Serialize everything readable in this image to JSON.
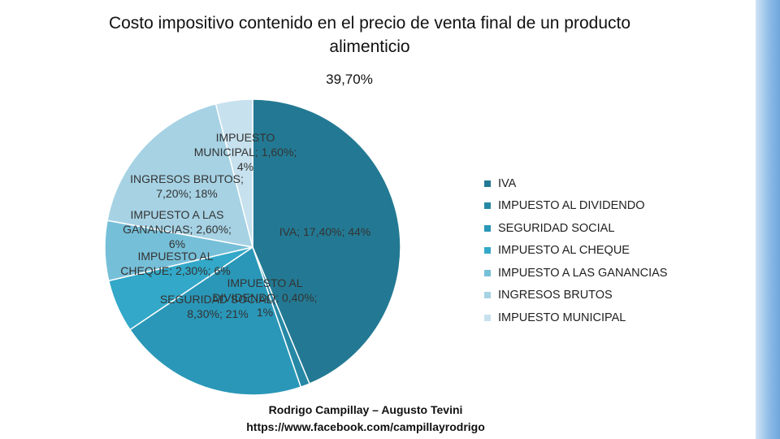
{
  "title": "Costo impositivo contenido en el precio de venta final de un producto alimenticio",
  "subtitle": "39,70%",
  "chart_data": {
    "type": "pie",
    "title": "Costo impositivo contenido en el precio de venta final de un producto alimenticio",
    "subtitle": "39,70%",
    "series": [
      {
        "name": "IVA",
        "value": 17.4,
        "percent": 44,
        "color": "#237993",
        "label_lines": [
          "IVA; 17,40%; 44%"
        ]
      },
      {
        "name": "IMPUESTO AL DIVIDENDO",
        "value": 0.4,
        "percent": 1,
        "color": "#2688a5",
        "label_lines": [
          "IMPUESTO AL",
          "DIVIDENDO; 0,40%;",
          "1%"
        ]
      },
      {
        "name": "SEGURIDAD SOCIAL",
        "value": 8.3,
        "percent": 21,
        "color": "#2a97b8",
        "label_lines": [
          "SEGURIDAD SOCIAL;",
          "8,30%; 21%"
        ]
      },
      {
        "name": "IMPUESTO AL CHEQUE",
        "value": 2.3,
        "percent": 6,
        "color": "#33a8c8",
        "label_lines": [
          "IMPUESTO AL",
          "CHEQUE; 2,30%; 6%"
        ]
      },
      {
        "name": "IMPUESTO A LAS GANANCIAS",
        "value": 2.6,
        "percent": 6,
        "color": "#76bfd8",
        "label_lines": [
          "IMPUESTO A LAS",
          "GANANCIAS; 2,60%;",
          "6%"
        ]
      },
      {
        "name": "INGRESOS BRUTOS",
        "value": 7.2,
        "percent": 18,
        "color": "#a6d2e4",
        "label_lines": [
          "INGRESOS BRUTOS;",
          "7,20%; 18%"
        ]
      },
      {
        "name": "IMPUESTO MUNICIPAL",
        "value": 1.6,
        "percent": 4,
        "color": "#c7e1ee",
        "label_lines": [
          "IMPUESTO",
          "MUNICIPAL; 1,60%;",
          "4%"
        ]
      }
    ],
    "legend_position": "right"
  },
  "credits": {
    "authors": "Rodrigo Campillay – Augusto Tevini",
    "url": "https://www.facebook.com/campillayrodrigo"
  }
}
